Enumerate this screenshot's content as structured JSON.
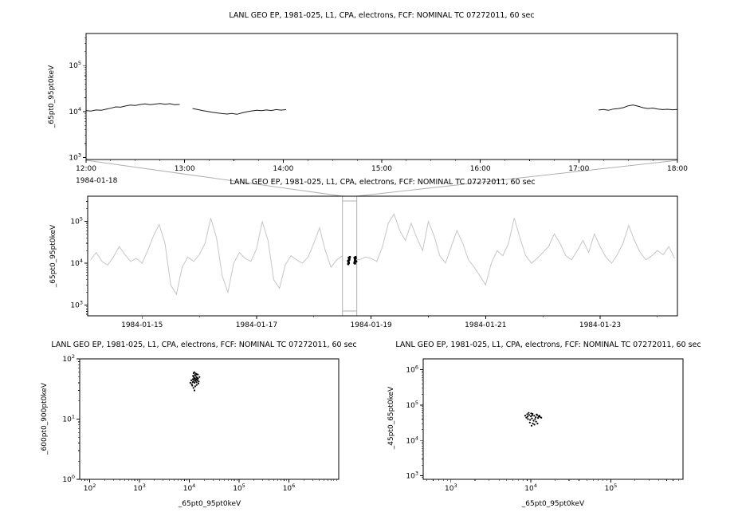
{
  "page": {
    "background": "#ffffff",
    "foreground": "#000000",
    "accent_gray": "#c6c6c6",
    "selection_gray": "#b0b0b0"
  },
  "chart_data": [
    {
      "id": "top_timeseries",
      "panel": "top",
      "type": "line",
      "title": "LANL GEO EP, 1981-025, L1, CPA, electrons, FCF: NOMINAL TC 07272011, 60 sec",
      "ylabel": "_65pt0_95pt0keV",
      "x_context": "1984-01-18",
      "x_scale": "linear",
      "xlim": [
        12,
        18
      ],
      "x_major": [
        12,
        13,
        14,
        15,
        16,
        17,
        18
      ],
      "x_major_labels": [
        "12:00",
        "13:00",
        "14:00",
        "15:00",
        "16:00",
        "17:00",
        "18:00"
      ],
      "x_minor_step": 0.25,
      "ylim": [
        900,
        500000
      ],
      "y_exps": [
        3,
        4,
        5
      ],
      "color": "#1a1a1a",
      "segments": [
        {
          "x": [
            12.0,
            12.05,
            12.1,
            12.15,
            12.2,
            12.25,
            12.3,
            12.35,
            12.4,
            12.45,
            12.5,
            12.55,
            12.6,
            12.65,
            12.7,
            12.75,
            12.8,
            12.85,
            12.9,
            12.95
          ],
          "y": [
            10500,
            10200,
            10800,
            10600,
            11200,
            11800,
            12600,
            12400,
            13200,
            13800,
            13500,
            14200,
            14600,
            14100,
            14500,
            15000,
            14400,
            14800,
            14000,
            14300
          ]
        },
        {
          "x": [
            13.08,
            13.13,
            13.18,
            13.23,
            13.28,
            13.33,
            13.38,
            13.43,
            13.48,
            13.53,
            13.58,
            13.63,
            13.68,
            13.73,
            13.78,
            13.83,
            13.88,
            13.93,
            13.98,
            14.03
          ],
          "y": [
            11600,
            11100,
            10500,
            10100,
            9600,
            9300,
            9000,
            8800,
            9100,
            8700,
            9300,
            9900,
            10300,
            10600,
            10400,
            10800,
            10500,
            11000,
            10700,
            11000
          ]
        },
        {
          "x": [
            17.2,
            17.25,
            17.3,
            17.35,
            17.4,
            17.45,
            17.5,
            17.55,
            17.6,
            17.65,
            17.7,
            17.75,
            17.8,
            17.85,
            17.9,
            17.95,
            18.0
          ],
          "y": [
            10800,
            11100,
            10600,
            11300,
            11600,
            12100,
            13300,
            13900,
            13100,
            12100,
            11600,
            11900,
            11300,
            11000,
            11200,
            10900,
            11100
          ]
        }
      ]
    },
    {
      "id": "overview_timeseries",
      "panel": "middle",
      "type": "line",
      "title": "LANL GEO EP, 1981-025, L1, CPA, electrons, FCF: NOMINAL TC 07272011, 60 sec",
      "ylabel": "_65pt0_95pt0keV",
      "x_scale": "linear",
      "xlim": [
        14.05,
        24.35
      ],
      "x_major": [
        15,
        17,
        19,
        21,
        23
      ],
      "x_major_labels": [
        "1984-01-15",
        "1984-01-17",
        "1984-01-19",
        "1984-01-21",
        "1984-01-23"
      ],
      "x_minor_step": 1,
      "ylim": [
        550,
        400000
      ],
      "y_exps": [
        3,
        4,
        5
      ],
      "color": "#c6c6c6",
      "x_start": 14.1,
      "x_step": 0.1,
      "values": [
        12000,
        18000,
        11000,
        9000,
        14000,
        25000,
        16000,
        11000,
        13000,
        10000,
        20000,
        45000,
        85000,
        30000,
        3000,
        1800,
        8000,
        14000,
        11000,
        16000,
        30000,
        120000,
        40000,
        5000,
        2000,
        10000,
        18000,
        13000,
        11000,
        22000,
        100000,
        35000,
        4000,
        2500,
        9000,
        15000,
        12000,
        10000,
        14000,
        30000,
        70000,
        20000,
        8000,
        12000,
        15000,
        11000,
        13000,
        12000,
        14000,
        13000,
        11000,
        25000,
        90000,
        150000,
        60000,
        35000,
        90000,
        40000,
        20000,
        100000,
        45000,
        15000,
        10000,
        25000,
        60000,
        30000,
        12000,
        8000,
        5000,
        3000,
        10000,
        20000,
        15000,
        30000,
        120000,
        40000,
        15000,
        10000,
        13000,
        18000,
        25000,
        50000,
        30000,
        15000,
        12000,
        20000,
        35000,
        18000,
        50000,
        25000,
        14000,
        10000,
        16000,
        30000,
        80000,
        35000,
        18000,
        12000,
        15000,
        20000,
        16000,
        25000,
        13000
      ],
      "selection": {
        "x0": 18.5,
        "x1": 18.75
      },
      "selected_points": {
        "x": [
          18.6,
          18.61,
          18.62,
          18.61,
          18.6,
          18.62,
          18.63,
          18.61,
          18.6,
          18.62,
          18.71,
          18.72,
          18.73,
          18.72,
          18.71,
          18.73,
          18.72,
          18.74,
          18.71,
          18.72
        ],
        "y": [
          9500,
          10500,
          12000,
          13500,
          11000,
          12500,
          14000,
          10000,
          11500,
          13000,
          10000,
          11500,
          13000,
          12000,
          10500,
          14000,
          12500,
          11000,
          13500,
          9800
        ]
      }
    },
    {
      "id": "scatter_600_900",
      "panel": "bottom_left",
      "type": "scatter",
      "title": "LANL GEO EP, 1981-025, L1, CPA, electrons, FCF: NOMINAL TC 07272011, 60 sec",
      "xlabel": "_65pt0_95pt0keV",
      "ylabel": "_600pt0_900pt0keV",
      "x_scale": "log",
      "xlim": [
        63,
        10000000
      ],
      "x_exps": [
        2,
        3,
        4,
        5,
        6
      ],
      "ylim": [
        1,
        100
      ],
      "y_exps": [
        0,
        1,
        2
      ],
      "color": "#000000",
      "points": {
        "x": [
          10500,
          11000,
          11200,
          11800,
          12000,
          12300,
          12500,
          12800,
          13000,
          13200,
          13500,
          13800,
          14000,
          14200,
          14500,
          14800,
          15000,
          15500,
          16000,
          11500,
          12200,
          13100,
          12600,
          11900,
          13400,
          12100,
          14100,
          12900,
          13600,
          12400,
          11700,
          15200,
          13900,
          12700,
          14600
        ],
        "y": [
          40,
          44,
          38,
          46,
          42,
          50,
          45,
          40,
          48,
          43,
          52,
          46,
          41,
          49,
          44,
          55,
          47,
          42,
          50,
          36,
          58,
          35,
          60,
          52,
          57,
          33,
          37,
          54,
          45,
          47,
          41,
          39,
          56,
          30,
          48
        ]
      }
    },
    {
      "id": "scatter_45_65",
      "panel": "bottom_right",
      "type": "scatter",
      "title": "LANL GEO EP, 1981-025, L1, CPA, electrons, FCF: NOMINAL TC 07272011, 60 sec",
      "xlabel": "_65pt0_95pt0keV",
      "ylabel": "_45pt0_65pt0keV",
      "x_scale": "log",
      "xlim": [
        450,
        800000
      ],
      "x_exps": [
        3,
        4,
        5
      ],
      "ylim": [
        800,
        2000000
      ],
      "y_exps": [
        3,
        4,
        5,
        6
      ],
      "color": "#000000",
      "points": {
        "x": [
          8500,
          9000,
          9500,
          10000,
          10500,
          11000,
          11500,
          12000,
          12500,
          9200,
          9800,
          10300,
          10800,
          11300,
          8800,
          13000,
          9400,
          10100,
          11800,
          12300,
          10600,
          11100,
          10200,
          9700,
          11600,
          12100,
          9100,
          12800,
          13500,
          10400
        ],
        "y": [
          50000,
          55000,
          52000,
          48000,
          56000,
          50000,
          45000,
          52000,
          48000,
          40000,
          38000,
          42000,
          36000,
          40000,
          44000,
          46000,
          60000,
          58000,
          54000,
          43000,
          30000,
          28000,
          26000,
          32000,
          34000,
          30000,
          47000,
          50000,
          44000,
          51000
        ]
      }
    }
  ]
}
